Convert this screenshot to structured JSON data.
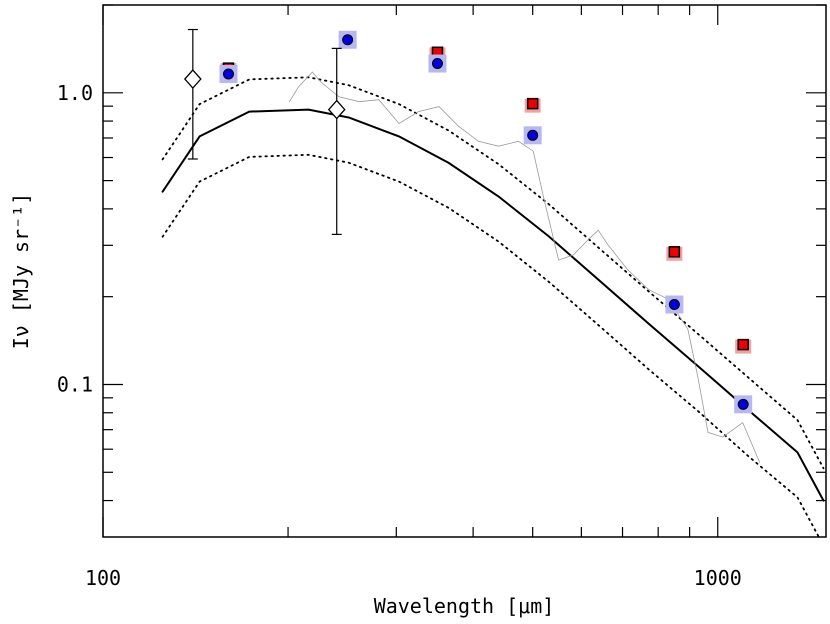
{
  "chart_data": {
    "type": "line",
    "xlabel": "Wavelength [μm]",
    "ylabel": "Iν [MJy sr⁻¹]",
    "xscale": "log",
    "yscale": "log",
    "xlim": [
      100,
      1500
    ],
    "ylim": [
      0.03,
      2
    ],
    "xticks": [
      100,
      1000
    ],
    "xminor_ticks": [
      200,
      300,
      400,
      500,
      600,
      700,
      800,
      900
    ],
    "yticks": [
      0.1,
      {
        "value": 1,
        "label": "1.0"
      }
    ],
    "yminor_ticks": [
      0.04,
      0.05,
      0.06,
      0.07,
      0.08,
      0.09,
      0.2,
      0.3,
      0.4,
      0.5,
      0.6,
      0.7,
      0.8,
      0.9,
      2
    ],
    "series": [
      {
        "style": "solid",
        "color": "#000000",
        "x": [
          125,
          143.6,
          173,
          216,
          251,
          303,
          365,
          440,
          531,
          639,
          771,
          929,
          1119,
          1348,
          1486
        ],
        "values": [
          0.458,
          0.709,
          0.862,
          0.876,
          0.823,
          0.709,
          0.575,
          0.441,
          0.322,
          0.229,
          0.162,
          0.1155,
          0.082,
          0.0585,
          0.04
        ]
      },
      {
        "style": "dotted",
        "color": "#000000",
        "x": [
          125,
          143.6,
          173,
          216,
          251,
          303,
          365,
          440,
          531,
          639,
          771,
          929,
          1119,
          1348,
          1486
        ],
        "values": [
          0.591,
          0.915,
          1.112,
          1.13,
          1.062,
          0.915,
          0.742,
          0.569,
          0.415,
          0.295,
          0.209,
          0.149,
          0.106,
          0.0755,
          0.0516
        ]
      },
      {
        "style": "dotted",
        "color": "#000000",
        "x": [
          125,
          143.6,
          173,
          216,
          251,
          303,
          365,
          440,
          531,
          639,
          771,
          929,
          1119,
          1348,
          1486
        ],
        "values": [
          0.321,
          0.496,
          0.603,
          0.613,
          0.576,
          0.496,
          0.403,
          0.309,
          0.225,
          0.16,
          0.113,
          0.081,
          0.057,
          0.041,
          0.028
        ]
      },
      {
        "style": "thin",
        "color": "#999999",
        "x": [
          201,
          208,
          219,
          226,
          242,
          261,
          281,
          303,
          326,
          352,
          379,
          408,
          440,
          474,
          501,
          520,
          551,
          582,
          615,
          639,
          663,
          714,
          771,
          830,
          894,
          929,
          964,
          1019,
          1098,
          1170
        ],
        "values": [
          0.932,
          1.048,
          1.178,
          1.09,
          0.969,
          0.932,
          0.947,
          0.785,
          0.862,
          0.897,
          0.767,
          0.682,
          0.656,
          0.682,
          0.631,
          0.444,
          0.267,
          0.278,
          0.313,
          0.338,
          0.301,
          0.247,
          0.212,
          0.196,
          0.155,
          0.105,
          0.0685,
          0.066,
          0.074,
          0.054
        ]
      }
    ],
    "markers": [
      {
        "marker": "square",
        "color": "#ee0000",
        "halo": "#f4a0a0",
        "x": [
          160,
          250,
          350,
          500,
          850,
          1100
        ],
        "values": [
          1.215,
          1.536,
          1.377,
          0.918,
          0.285,
          0.137
        ]
      },
      {
        "marker": "circle",
        "color": "#0000dd",
        "halo": "#b8b8f0",
        "x": [
          160,
          250,
          350,
          500,
          850,
          1100
        ],
        "values": [
          1.16,
          1.52,
          1.26,
          0.715,
          0.188,
          0.0855
        ]
      },
      {
        "marker": "diamond",
        "color": "#000000",
        "x": [
          140,
          240
        ],
        "values": [
          1.115,
          0.876
        ],
        "lower": [
          0.593,
          0.327
        ],
        "upper": [
          1.648,
          1.42
        ]
      }
    ]
  }
}
